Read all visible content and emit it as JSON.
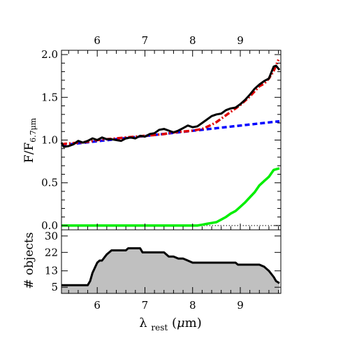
{
  "chart_data": [
    {
      "type": "line",
      "title": "",
      "xlabel": "λ rest (μm)",
      "xlabel_parts": {
        "symbol": "λ",
        "subscript": "rest",
        "unit_open": "(",
        "unit_symbol": "μ",
        "unit_rest": "m)"
      },
      "ylabel": "F/F6.7μm",
      "ylabel_parts": {
        "main": "F/F",
        "subscript": "6.7μm"
      },
      "xlim": [
        5.25,
        9.85
      ],
      "ylim": [
        -0.05,
        2.05
      ],
      "x_ticks": [
        6,
        7,
        8,
        9
      ],
      "x_tick_labels": [
        "6",
        "7",
        "8",
        "9"
      ],
      "y_ticks": [
        0.0,
        0.5,
        1.0,
        1.5,
        2.0
      ],
      "y_tick_labels": [
        "0.0",
        "0.5",
        "1.0",
        "1.5",
        "2.0"
      ],
      "legend": "none",
      "grid": false,
      "series": [
        {
          "color": "#000000",
          "style": "solid",
          "x": [
            5.25,
            5.3,
            5.4,
            5.5,
            5.6,
            5.7,
            5.8,
            5.9,
            6.0,
            6.1,
            6.2,
            6.3,
            6.4,
            6.5,
            6.6,
            6.7,
            6.8,
            6.9,
            7.0,
            7.1,
            7.2,
            7.3,
            7.4,
            7.5,
            7.6,
            7.7,
            7.8,
            7.9,
            8.0,
            8.1,
            8.2,
            8.3,
            8.4,
            8.5,
            8.6,
            8.7,
            8.8,
            8.9,
            9.0,
            9.1,
            9.2,
            9.3,
            9.4,
            9.5,
            9.6,
            9.7,
            9.75,
            9.82
          ],
          "y": [
            0.97,
            0.92,
            0.93,
            0.95,
            0.99,
            0.97,
            0.99,
            1.02,
            1.0,
            1.03,
            1.01,
            1.01,
            1.0,
            0.99,
            1.02,
            1.03,
            1.02,
            1.05,
            1.04,
            1.07,
            1.08,
            1.12,
            1.13,
            1.11,
            1.09,
            1.11,
            1.14,
            1.17,
            1.15,
            1.16,
            1.2,
            1.24,
            1.28,
            1.3,
            1.31,
            1.35,
            1.37,
            1.38,
            1.42,
            1.47,
            1.53,
            1.6,
            1.65,
            1.69,
            1.72,
            1.86,
            1.87,
            1.82
          ]
        },
        {
          "color": "#0000ff",
          "style": "dashed",
          "x": [
            5.25,
            9.82
          ],
          "y": [
            0.94,
            1.22
          ]
        },
        {
          "color": "#e00000",
          "style": "dashdot",
          "x": [
            5.25,
            5.4,
            5.6,
            5.8,
            6.0,
            6.2,
            6.4,
            6.6,
            6.8,
            7.0,
            7.2,
            7.4,
            7.6,
            7.8,
            8.0,
            8.2,
            8.4,
            8.5,
            8.6,
            8.7,
            8.8,
            8.9,
            9.0,
            9.1,
            9.2,
            9.3,
            9.4,
            9.5,
            9.6,
            9.7,
            9.8
          ],
          "y": [
            0.95,
            0.96,
            0.97,
            0.98,
            1.0,
            1.01,
            1.02,
            1.03,
            1.04,
            1.05,
            1.06,
            1.07,
            1.09,
            1.1,
            1.11,
            1.13,
            1.18,
            1.21,
            1.25,
            1.29,
            1.33,
            1.37,
            1.41,
            1.46,
            1.51,
            1.57,
            1.63,
            1.66,
            1.72,
            1.81,
            1.94
          ]
        },
        {
          "color": "#00ee00",
          "style": "solid",
          "x": [
            5.25,
            6.0,
            7.0,
            8.0,
            8.1,
            8.2,
            8.3,
            8.4,
            8.5,
            8.6,
            8.7,
            8.8,
            8.9,
            9.0,
            9.1,
            9.2,
            9.3,
            9.4,
            9.5,
            9.6,
            9.7,
            9.82
          ],
          "y": [
            0.0,
            0.0,
            0.0,
            0.0,
            0.0,
            0.01,
            0.02,
            0.03,
            0.04,
            0.07,
            0.1,
            0.14,
            0.17,
            0.22,
            0.27,
            0.33,
            0.39,
            0.47,
            0.52,
            0.57,
            0.65,
            0.67
          ]
        }
      ],
      "baseline": {
        "y": 0.0,
        "color": "#000000",
        "style": "dotted",
        "x_from": 8.0
      }
    },
    {
      "type": "area",
      "title": "",
      "xlabel": "",
      "ylabel": "# objects",
      "xlim": [
        5.25,
        9.85
      ],
      "ylim": [
        2,
        33
      ],
      "y_ticks": [
        5,
        13,
        22,
        30
      ],
      "y_tick_labels": [
        "5",
        "13",
        "22",
        "30"
      ],
      "fill_color": "#c0c0c0",
      "series": [
        {
          "color": "#000000",
          "x": [
            5.25,
            5.8,
            5.85,
            5.9,
            6.0,
            6.05,
            6.1,
            6.2,
            6.3,
            6.6,
            6.65,
            6.9,
            6.95,
            7.4,
            7.5,
            7.6,
            7.7,
            7.8,
            7.9,
            8.0,
            8.9,
            8.95,
            9.4,
            9.5,
            9.6,
            9.7,
            9.75,
            9.82
          ],
          "y": [
            6,
            6,
            8,
            12,
            17,
            18,
            18,
            21,
            23,
            23,
            24,
            24,
            22,
            22,
            20,
            20,
            19,
            19,
            18,
            17,
            17,
            16,
            16,
            15,
            13,
            10,
            8,
            7
          ]
        }
      ]
    }
  ]
}
